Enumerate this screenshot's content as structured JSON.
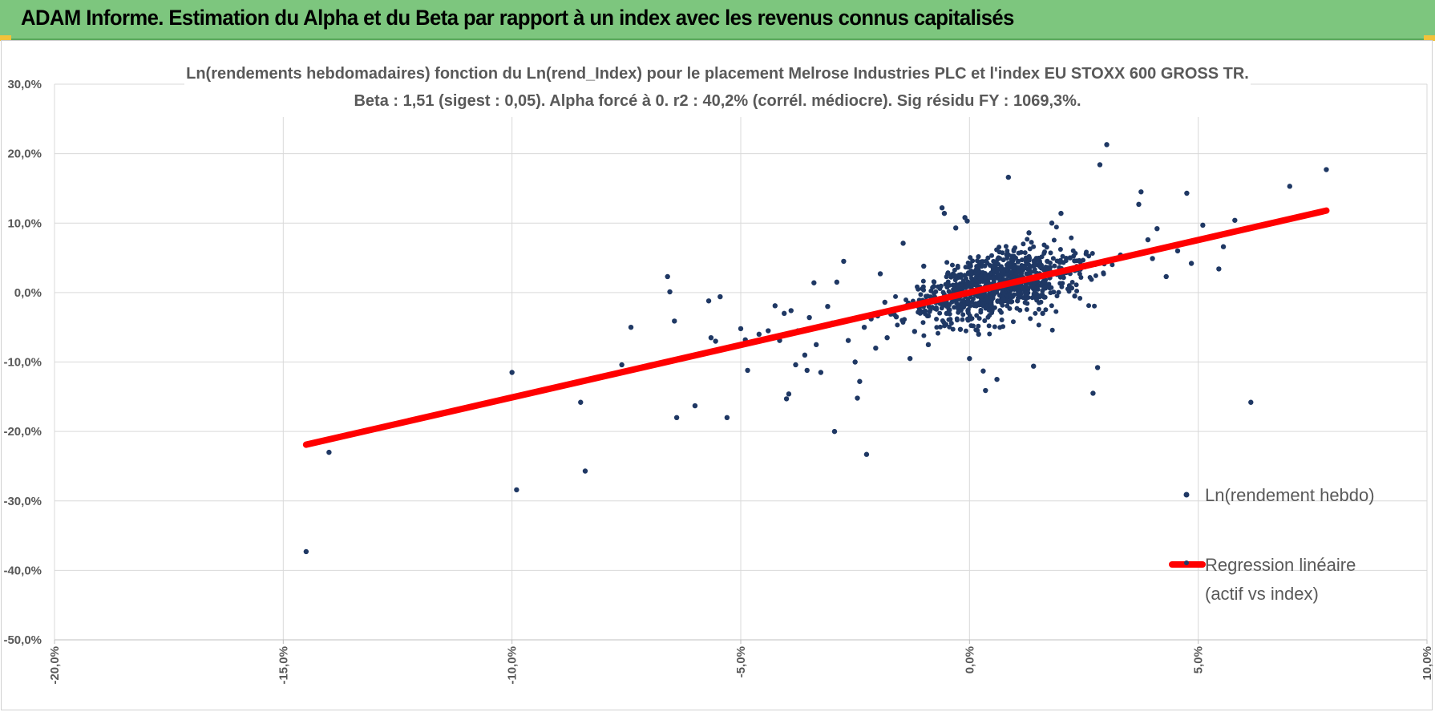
{
  "header": {
    "title": "ADAM Informe. Estimation du Alpha et du Beta par rapport à un index avec les revenus connus capitalisés",
    "color": "#7dc67e"
  },
  "chart_data": {
    "type": "scatter",
    "title_lines": [
      "Ln(rendements hebdomadaires) fonction du Ln(rend_Index) pour le placement Melrose Industries PLC et l'index EU STOXX 600 GROSS TR.",
      "Beta : 1,51 (sigest : 0,05).  Alpha forcé à 0. r2 : 40,2% (corrél. médiocre). Sig résidu FY : 1069,3%."
    ],
    "xlabel": "",
    "ylabel": "",
    "xlim": [
      -20,
      10
    ],
    "ylim": [
      -50,
      30
    ],
    "x_ticks": [
      "-20,0%",
      "-15,0%",
      "-10,0%",
      "-5,0%",
      "0,0%",
      "5,0%",
      "10,0%"
    ],
    "y_ticks": [
      "30,0%",
      "20,0%",
      "10,0%",
      "0,0%",
      "-10,0%",
      "-20,0%",
      "-30,0%",
      "-40,0%",
      "-50,0%"
    ],
    "grid": true,
    "legend_position": "right",
    "series": [
      {
        "name": "Ln(rendement hebdo)",
        "kind": "scatter",
        "color": "#1f3864",
        "points": [
          [
            -14.5,
            -37.3
          ],
          [
            -14.0,
            -23.0
          ],
          [
            -10.0,
            -11.5
          ],
          [
            -9.9,
            -28.4
          ],
          [
            -8.5,
            -15.8
          ],
          [
            -8.4,
            -25.7
          ],
          [
            -7.6,
            -10.4
          ],
          [
            -7.4,
            -5.0
          ],
          [
            -6.6,
            2.3
          ],
          [
            -6.55,
            0.1
          ],
          [
            -6.45,
            -4.1
          ],
          [
            -6.4,
            -18.0
          ],
          [
            -6.0,
            -16.3
          ],
          [
            -5.7,
            -1.2
          ],
          [
            -5.65,
            -6.5
          ],
          [
            -5.55,
            -7.0
          ],
          [
            -5.45,
            -0.6
          ],
          [
            -5.3,
            -18.0
          ],
          [
            -5.0,
            -5.2
          ],
          [
            -4.9,
            -6.8
          ],
          [
            -4.85,
            -11.2
          ],
          [
            -4.6,
            -6.0
          ],
          [
            -4.4,
            -5.5
          ],
          [
            -4.25,
            -1.9
          ],
          [
            -4.15,
            -6.9
          ],
          [
            -4.05,
            -3.0
          ],
          [
            -4.0,
            -15.3
          ],
          [
            -3.95,
            -14.6
          ],
          [
            -3.9,
            -2.6
          ],
          [
            -3.8,
            -10.4
          ],
          [
            -3.75,
            -5.5
          ],
          [
            -3.6,
            -9.0
          ],
          [
            -3.55,
            -11.2
          ],
          [
            -3.5,
            -3.6
          ],
          [
            -3.4,
            1.4
          ],
          [
            -3.35,
            -7.5
          ],
          [
            -3.25,
            -11.5
          ],
          [
            -3.1,
            -2.0
          ],
          [
            -3.0,
            -4.4
          ],
          [
            -2.95,
            -20.0
          ],
          [
            -2.9,
            1.5
          ],
          [
            -2.75,
            4.5
          ],
          [
            -2.65,
            -6.9
          ],
          [
            -2.5,
            -10.0
          ],
          [
            -2.45,
            -15.2
          ],
          [
            -2.4,
            -12.8
          ],
          [
            -2.3,
            -5.0
          ],
          [
            -2.25,
            -23.3
          ],
          [
            -2.15,
            -3.8
          ],
          [
            -2.05,
            -8.0
          ],
          [
            -1.95,
            2.7
          ],
          [
            -1.85,
            -1.4
          ],
          [
            -1.8,
            -6.5
          ],
          [
            -1.6,
            -3.5
          ],
          [
            -1.45,
            7.1
          ],
          [
            -1.3,
            -9.5
          ],
          [
            -1.2,
            -5.6
          ],
          [
            -1.1,
            -2.2
          ],
          [
            -1.0,
            3.8
          ],
          [
            -0.9,
            -7.5
          ],
          [
            -0.8,
            -1.0
          ],
          [
            -0.6,
            12.2
          ],
          [
            -0.55,
            11.4
          ],
          [
            -0.5,
            -3.0
          ],
          [
            -0.3,
            9.3
          ],
          [
            -0.2,
            -5.3
          ],
          [
            -0.1,
            10.8
          ],
          [
            -0.05,
            10.3
          ],
          [
            0.0,
            -9.5
          ],
          [
            0.1,
            3.0
          ],
          [
            0.2,
            -6.0
          ],
          [
            0.35,
            -14.1
          ],
          [
            0.3,
            -11.3
          ],
          [
            0.5,
            2.5
          ],
          [
            0.6,
            -12.5
          ],
          [
            0.8,
            -0.8
          ],
          [
            0.85,
            16.6
          ],
          [
            1.0,
            2.1
          ],
          [
            1.05,
            -1.2
          ],
          [
            1.3,
            8.6
          ],
          [
            1.4,
            -10.6
          ],
          [
            1.6,
            -3.0
          ],
          [
            1.7,
            4.5
          ],
          [
            1.8,
            10.0
          ],
          [
            2.0,
            11.4
          ],
          [
            2.2,
            5.0
          ],
          [
            2.3,
            -0.5
          ],
          [
            2.6,
            3.9
          ],
          [
            2.7,
            -14.5
          ],
          [
            2.8,
            -10.8
          ],
          [
            2.85,
            18.4
          ],
          [
            3.0,
            21.3
          ],
          [
            3.3,
            5.4
          ],
          [
            3.7,
            12.7
          ],
          [
            3.75,
            14.5
          ],
          [
            3.9,
            7.6
          ],
          [
            4.0,
            4.9
          ],
          [
            4.1,
            9.2
          ],
          [
            4.3,
            2.3
          ],
          [
            4.55,
            6.0
          ],
          [
            4.75,
            14.3
          ],
          [
            4.85,
            4.2
          ],
          [
            5.0,
            7.5
          ],
          [
            5.1,
            9.7
          ],
          [
            5.45,
            3.4
          ],
          [
            5.55,
            6.6
          ],
          [
            5.8,
            10.4
          ],
          [
            6.15,
            -15.8
          ],
          [
            7.0,
            15.3
          ],
          [
            7.8,
            17.7
          ]
        ]
      },
      {
        "name": "Regression linéaire (actif vs index)",
        "kind": "line",
        "color": "#ff0000",
        "points": [
          [
            -14.5,
            -21.9
          ],
          [
            7.8,
            11.8
          ]
        ]
      }
    ],
    "legend": {
      "scatter_label": "Ln(rendement hebdo)",
      "line_label_1": "Regression linéaire",
      "line_label_2": "(actif vs index)"
    }
  }
}
